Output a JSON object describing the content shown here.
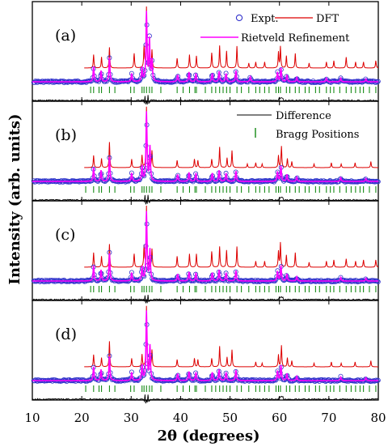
{
  "chart_data": {
    "type": "line",
    "xlabel": "2θ (degrees)",
    "ylabel": "Intensity (arb. units)",
    "xlim": [
      10,
      80
    ],
    "x_ticks": [
      10,
      20,
      30,
      40,
      50,
      60,
      70,
      80
    ],
    "x_tick_labels": [
      "10",
      "20",
      "30",
      "40",
      "50",
      "60",
      "70",
      "80"
    ],
    "panel_labels": [
      "(a)",
      "(b)",
      "(c)",
      "(d)"
    ],
    "legend": {
      "panel_a": [
        "Expt.",
        "DFT",
        "Rietveld Refinement"
      ],
      "panel_b": [
        "Difference",
        "Bragg Positions"
      ]
    },
    "series_colors": {
      "expt": "#3333cc",
      "dft": "#dd0000",
      "rietveld": "#ff00ff",
      "difference": "#000000",
      "bragg": "#008000"
    },
    "panels": [
      {
        "label": "(a)",
        "expt_peaks": [
          [
            22.4,
            0.22
          ],
          [
            23.9,
            0.16
          ],
          [
            25.6,
            0.35
          ],
          [
            30.1,
            0.12
          ],
          [
            32.2,
            0.2
          ],
          [
            33.1,
            1.0
          ],
          [
            33.7,
            0.6
          ],
          [
            34.2,
            0.3
          ],
          [
            39.4,
            0.1
          ],
          [
            41.7,
            0.14
          ],
          [
            43.1,
            0.12
          ],
          [
            46.4,
            0.12
          ],
          [
            47.8,
            0.15
          ],
          [
            49.2,
            0.12
          ],
          [
            51.2,
            0.16
          ],
          [
            54.1,
            0.07
          ],
          [
            59.6,
            0.14
          ],
          [
            60.3,
            0.2
          ],
          [
            61.5,
            0.1
          ],
          [
            63.5,
            0.06
          ],
          [
            69.5,
            0.05
          ],
          [
            72.4,
            0.05
          ],
          [
            77.5,
            0.04
          ]
        ],
        "dft_peaks": [
          [
            22.4,
            0.22
          ],
          [
            24.0,
            0.18
          ],
          [
            25.6,
            0.34
          ],
          [
            30.6,
            0.24
          ],
          [
            32.6,
            0.35
          ],
          [
            33.1,
            1.0
          ],
          [
            34.2,
            0.3
          ],
          [
            39.3,
            0.16
          ],
          [
            41.8,
            0.22
          ],
          [
            43.2,
            0.2
          ],
          [
            46.3,
            0.25
          ],
          [
            47.9,
            0.37
          ],
          [
            49.3,
            0.28
          ],
          [
            51.4,
            0.36
          ],
          [
            53.8,
            0.08
          ],
          [
            55.2,
            0.1
          ],
          [
            57.0,
            0.1
          ],
          [
            59.8,
            0.26
          ],
          [
            60.2,
            0.35
          ],
          [
            61.4,
            0.2
          ],
          [
            63.2,
            0.24
          ],
          [
            66.0,
            0.08
          ],
          [
            69.5,
            0.1
          ],
          [
            71.0,
            0.12
          ],
          [
            73.5,
            0.18
          ],
          [
            75.4,
            0.1
          ],
          [
            77.0,
            0.1
          ],
          [
            79.5,
            0.12
          ]
        ],
        "bragg_positions": [
          21.8,
          22.4,
          23.5,
          24.0,
          25.6,
          26.7,
          29.9,
          30.6,
          32.2,
          32.6,
          33.1,
          33.7,
          34.2,
          36.0,
          39.3,
          40.5,
          41.8,
          42.9,
          43.2,
          45.0,
          46.3,
          47.1,
          47.9,
          48.6,
          49.3,
          50.0,
          51.4,
          52.3,
          53.8,
          55.2,
          56.0,
          57.0,
          57.9,
          59.3,
          59.8,
          60.2,
          61.4,
          62.1,
          63.2,
          64.0,
          65.2,
          66.0,
          67.3,
          68.1,
          69.5,
          70.3,
          71.0,
          72.2,
          73.5,
          74.5,
          75.4,
          76.3,
          77.0,
          78.2,
          79.5
        ]
      },
      {
        "label": "(b)",
        "expt_peaks": [
          [
            22.4,
            0.2
          ],
          [
            23.9,
            0.16
          ],
          [
            25.6,
            0.35
          ],
          [
            30.1,
            0.12
          ],
          [
            32.2,
            0.22
          ],
          [
            33.1,
            1.0
          ],
          [
            33.8,
            0.5
          ],
          [
            39.4,
            0.1
          ],
          [
            41.7,
            0.13
          ],
          [
            43.1,
            0.12
          ],
          [
            46.4,
            0.12
          ],
          [
            47.8,
            0.16
          ],
          [
            49.2,
            0.12
          ],
          [
            51.2,
            0.15
          ],
          [
            59.6,
            0.14
          ],
          [
            60.3,
            0.22
          ],
          [
            61.5,
            0.1
          ],
          [
            63.5,
            0.06
          ],
          [
            72.4,
            0.05
          ],
          [
            77.5,
            0.04
          ]
        ],
        "dft_peaks": [
          [
            22.4,
            0.2
          ],
          [
            24.0,
            0.15
          ],
          [
            25.6,
            0.42
          ],
          [
            30.1,
            0.14
          ],
          [
            32.2,
            0.2
          ],
          [
            33.1,
            1.0
          ],
          [
            34.2,
            0.28
          ],
          [
            39.3,
            0.12
          ],
          [
            42.8,
            0.14
          ],
          [
            43.5,
            0.12
          ],
          [
            46.3,
            0.14
          ],
          [
            47.9,
            0.34
          ],
          [
            49.4,
            0.16
          ],
          [
            50.4,
            0.28
          ],
          [
            53.5,
            0.06
          ],
          [
            55.2,
            0.08
          ],
          [
            56.5,
            0.06
          ],
          [
            59.8,
            0.2
          ],
          [
            60.4,
            0.35
          ],
          [
            61.6,
            0.15
          ],
          [
            62.5,
            0.1
          ],
          [
            67.0,
            0.06
          ],
          [
            70.5,
            0.08
          ],
          [
            72.5,
            0.06
          ],
          [
            75.3,
            0.08
          ],
          [
            78.5,
            0.1
          ]
        ],
        "bragg_positions": [
          20.8,
          22.4,
          23.5,
          24.0,
          25.6,
          26.7,
          29.9,
          30.6,
          32.2,
          32.6,
          33.1,
          33.7,
          34.2,
          36.0,
          39.3,
          40.5,
          41.8,
          42.9,
          43.2,
          45.0,
          46.3,
          47.1,
          47.9,
          48.6,
          49.3,
          50.0,
          51.4,
          52.3,
          53.8,
          55.2,
          56.0,
          57.0,
          57.9,
          59.3,
          59.8,
          60.2,
          61.4,
          62.1,
          63.2,
          64.0,
          65.2,
          66.0,
          67.3,
          68.1,
          69.5,
          70.3,
          71.0,
          72.2,
          73.5,
          74.5,
          75.4,
          76.3,
          77.0,
          78.2,
          79.5
        ]
      },
      {
        "label": "(c)",
        "expt_peaks": [
          [
            22.4,
            0.22
          ],
          [
            23.9,
            0.16
          ],
          [
            25.6,
            0.4
          ],
          [
            30.1,
            0.12
          ],
          [
            32.2,
            0.2
          ],
          [
            33.1,
            1.0
          ],
          [
            33.8,
            0.45
          ],
          [
            39.4,
            0.1
          ],
          [
            41.7,
            0.13
          ],
          [
            43.1,
            0.12
          ],
          [
            46.4,
            0.12
          ],
          [
            47.8,
            0.16
          ],
          [
            49.2,
            0.12
          ],
          [
            51.2,
            0.15
          ],
          [
            59.6,
            0.14
          ],
          [
            60.3,
            0.22
          ],
          [
            61.5,
            0.1
          ],
          [
            63.5,
            0.06
          ],
          [
            72.4,
            0.05
          ],
          [
            77.5,
            0.04
          ]
        ],
        "dft_peaks": [
          [
            22.4,
            0.24
          ],
          [
            24.0,
            0.18
          ],
          [
            25.6,
            0.38
          ],
          [
            30.6,
            0.22
          ],
          [
            32.6,
            0.34
          ],
          [
            33.1,
            1.0
          ],
          [
            34.2,
            0.3
          ],
          [
            39.3,
            0.18
          ],
          [
            41.8,
            0.22
          ],
          [
            43.2,
            0.22
          ],
          [
            46.3,
            0.26
          ],
          [
            47.9,
            0.34
          ],
          [
            49.3,
            0.28
          ],
          [
            51.4,
            0.34
          ],
          [
            55.2,
            0.1
          ],
          [
            57.0,
            0.1
          ],
          [
            59.8,
            0.26
          ],
          [
            60.2,
            0.4
          ],
          [
            61.4,
            0.2
          ],
          [
            63.2,
            0.24
          ],
          [
            66.0,
            0.08
          ],
          [
            69.5,
            0.1
          ],
          [
            71.0,
            0.12
          ],
          [
            73.5,
            0.14
          ],
          [
            75.4,
            0.1
          ],
          [
            77.0,
            0.12
          ],
          [
            79.5,
            0.12
          ]
        ],
        "bragg_positions": [
          21.8,
          22.4,
          23.5,
          24.0,
          25.6,
          26.7,
          29.9,
          30.6,
          32.2,
          32.6,
          33.1,
          33.7,
          34.2,
          36.0,
          39.3,
          40.5,
          41.8,
          42.9,
          43.2,
          45.0,
          46.3,
          47.1,
          47.9,
          48.6,
          49.3,
          50.0,
          51.4,
          52.3,
          53.8,
          55.2,
          56.0,
          57.0,
          57.9,
          59.3,
          59.8,
          60.2,
          61.4,
          62.1,
          63.2,
          64.0,
          65.2,
          66.0,
          67.3,
          68.1,
          69.5,
          70.3,
          71.0,
          72.2,
          73.5,
          74.5,
          75.4,
          76.3,
          77.0,
          78.2,
          79.5
        ]
      },
      {
        "label": "(d)",
        "expt_peaks": [
          [
            22.4,
            0.2
          ],
          [
            23.9,
            0.16
          ],
          [
            25.6,
            0.35
          ],
          [
            30.1,
            0.12
          ],
          [
            32.2,
            0.22
          ],
          [
            33.1,
            1.0
          ],
          [
            33.8,
            0.5
          ],
          [
            39.4,
            0.1
          ],
          [
            41.7,
            0.13
          ],
          [
            43.1,
            0.12
          ],
          [
            46.4,
            0.12
          ],
          [
            47.8,
            0.16
          ],
          [
            49.2,
            0.12
          ],
          [
            51.2,
            0.15
          ],
          [
            59.6,
            0.14
          ],
          [
            60.3,
            0.22
          ],
          [
            61.5,
            0.1
          ],
          [
            63.5,
            0.06
          ],
          [
            72.4,
            0.05
          ],
          [
            77.5,
            0.04
          ]
        ],
        "dft_peaks": [
          [
            22.4,
            0.2
          ],
          [
            24.0,
            0.15
          ],
          [
            25.6,
            0.42
          ],
          [
            30.1,
            0.14
          ],
          [
            32.2,
            0.2
          ],
          [
            33.1,
            1.0
          ],
          [
            34.2,
            0.28
          ],
          [
            39.3,
            0.12
          ],
          [
            42.8,
            0.14
          ],
          [
            43.5,
            0.12
          ],
          [
            46.3,
            0.14
          ],
          [
            47.9,
            0.34
          ],
          [
            49.4,
            0.16
          ],
          [
            50.4,
            0.28
          ],
          [
            55.2,
            0.08
          ],
          [
            56.5,
            0.06
          ],
          [
            59.8,
            0.2
          ],
          [
            60.4,
            0.35
          ],
          [
            61.6,
            0.15
          ],
          [
            62.5,
            0.1
          ],
          [
            67.0,
            0.06
          ],
          [
            70.5,
            0.08
          ],
          [
            72.5,
            0.06
          ],
          [
            75.3,
            0.08
          ],
          [
            78.5,
            0.1
          ]
        ],
        "bragg_positions": [
          20.8,
          22.4,
          23.5,
          24.0,
          25.6,
          26.7,
          29.9,
          30.6,
          32.2,
          32.6,
          33.1,
          33.7,
          34.2,
          36.0,
          39.3,
          40.5,
          41.8,
          42.9,
          43.2,
          45.0,
          46.3,
          47.1,
          47.9,
          48.6,
          49.3,
          50.0,
          51.4,
          52.3,
          53.8,
          55.2,
          56.0,
          57.0,
          57.9,
          59.3,
          59.8,
          60.2,
          61.4,
          62.1,
          63.2,
          64.0,
          65.2,
          66.0,
          67.3,
          68.1,
          69.5,
          70.3,
          71.0,
          72.2,
          73.5,
          74.5,
          75.4,
          76.3,
          77.0,
          78.2,
          79.5
        ]
      }
    ]
  }
}
